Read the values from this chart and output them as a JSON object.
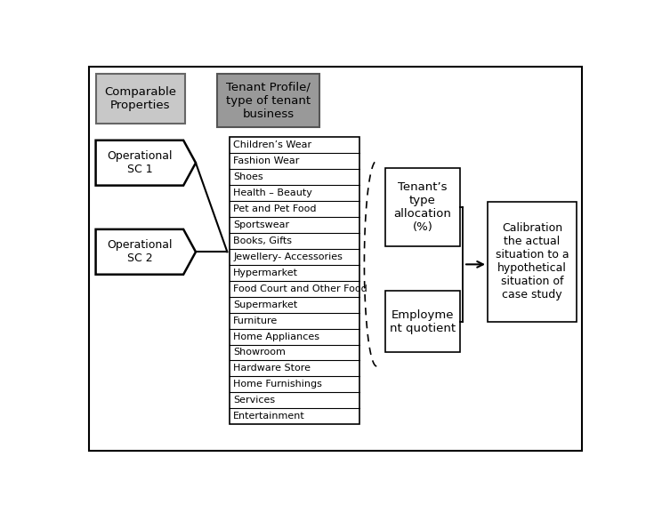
{
  "bg_color": "#ffffff",
  "border_color": "#000000",
  "box1_label": "Comparable\nProperties",
  "box2_label": "Tenant Profile/\ntype of tenant\nbusiness",
  "op1_label": "Operational\nSC 1",
  "op2_label": "Operational\nSC 2",
  "list_items": [
    "Children’s Wear",
    "Fashion Wear",
    "Shoes",
    "Health – Beauty",
    "Pet and Pet Food",
    "Sportswear",
    "Books, Gifts",
    "Jewellery- Accessories",
    "Hypermarket",
    "Food Court and Other Food",
    "Supermarket",
    "Furniture",
    "Home Appliances",
    "Showroom",
    "Hardware Store",
    "Home Furnishings",
    "Services",
    "Entertainment"
  ],
  "tenant_box_label": "Tenant’s\ntype\nallocation\n(%)",
  "employ_box_label": "Employme\nnt quotient",
  "calib_box_label": "Calibration\nthe actual\nsituation to a\nhypothetical\nsituation of\ncase study"
}
